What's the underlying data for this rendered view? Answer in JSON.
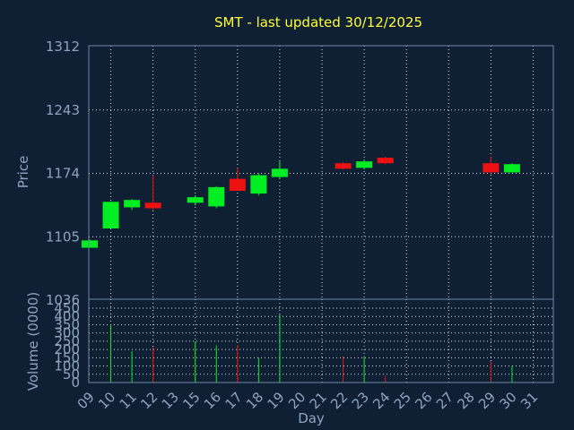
{
  "chart_data": {
    "type": "candlestick",
    "title": "SMT - last updated 30/12/2025",
    "xlabel": "Day",
    "x_ticks": [
      "09",
      "10",
      "11",
      "12",
      "13",
      "15",
      "16",
      "17",
      "18",
      "19",
      "20",
      "21",
      "22",
      "23",
      "24",
      "25",
      "26",
      "27",
      "28",
      "29",
      "30",
      "31"
    ],
    "price_panel": {
      "ylabel": "Price",
      "ylim": [
        1036,
        1312
      ],
      "y_ticks": [
        "1312",
        "1243",
        "1174",
        "1105",
        "1036"
      ],
      "grid": true,
      "candles": [
        {
          "day": "09",
          "open": 1093,
          "high": 1102,
          "low": 1093,
          "close": 1101
        },
        {
          "day": "10",
          "open": 1114,
          "high": 1143,
          "low": 1114,
          "close": 1143
        },
        {
          "day": "11",
          "open": 1137,
          "high": 1146,
          "low": 1134,
          "close": 1145
        },
        {
          "day": "12",
          "open": 1142,
          "high": 1172,
          "low": 1134,
          "close": 1136
        },
        {
          "day": "15",
          "open": 1142,
          "high": 1150,
          "low": 1139,
          "close": 1148
        },
        {
          "day": "16",
          "open": 1138,
          "high": 1160,
          "low": 1136,
          "close": 1159
        },
        {
          "day": "17",
          "open": 1168,
          "high": 1180,
          "low": 1155,
          "close": 1155
        },
        {
          "day": "18",
          "open": 1152,
          "high": 1174,
          "low": 1150,
          "close": 1172
        },
        {
          "day": "19",
          "open": 1170,
          "high": 1187,
          "low": 1168,
          "close": 1179
        },
        {
          "day": "22",
          "open": 1185,
          "high": 1186,
          "low": 1178,
          "close": 1179
        },
        {
          "day": "23",
          "open": 1180,
          "high": 1189,
          "low": 1178,
          "close": 1187
        },
        {
          "day": "24",
          "open": 1191,
          "high": 1192,
          "low": 1184,
          "close": 1185
        },
        {
          "day": "29",
          "open": 1185,
          "high": 1192,
          "low": 1175,
          "close": 1175
        },
        {
          "day": "30",
          "open": 1175,
          "high": 1185,
          "low": 1175,
          "close": 1184
        }
      ]
    },
    "volume_panel": {
      "ylabel": "Volume (0000)",
      "ylim": [
        0,
        450
      ],
      "y_ticks": [
        "450",
        "400",
        "350",
        "300",
        "250",
        "200",
        "150",
        "100",
        "50",
        "0"
      ],
      "grid": true,
      "bars": [
        {
          "day": "10",
          "value": 350,
          "direction": "up"
        },
        {
          "day": "11",
          "value": 190,
          "direction": "up"
        },
        {
          "day": "12",
          "value": 215,
          "direction": "down"
        },
        {
          "day": "15",
          "value": 250,
          "direction": "up"
        },
        {
          "day": "16",
          "value": 225,
          "direction": "up"
        },
        {
          "day": "17",
          "value": 225,
          "direction": "down"
        },
        {
          "day": "18",
          "value": 150,
          "direction": "up"
        },
        {
          "day": "19",
          "value": 410,
          "direction": "up"
        },
        {
          "day": "22",
          "value": 160,
          "direction": "down"
        },
        {
          "day": "23",
          "value": 160,
          "direction": "up"
        },
        {
          "day": "24",
          "value": 40,
          "direction": "down"
        },
        {
          "day": "29",
          "value": 130,
          "direction": "down"
        },
        {
          "day": "30",
          "value": 100,
          "direction": "up"
        }
      ]
    },
    "colors": {
      "background": "#102034",
      "up": "#00ee22",
      "down": "#ee1111",
      "title": "#ffff33",
      "text": "#8fa4bf"
    }
  }
}
